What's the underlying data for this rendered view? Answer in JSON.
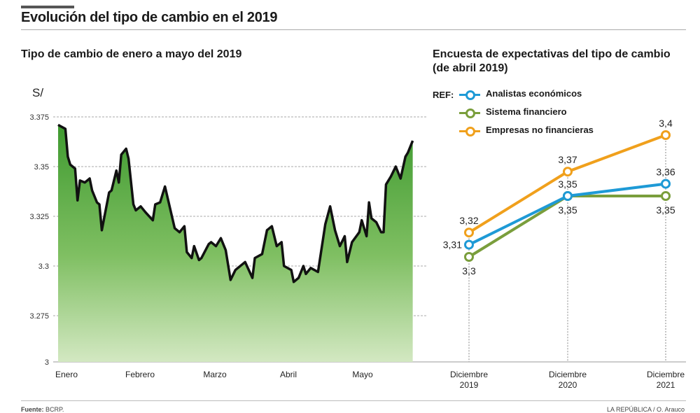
{
  "header": {
    "title": "Evolución del tipo de cambio en el 2019"
  },
  "footer": {
    "source_label": "Fuente:",
    "source": "BCRP.",
    "credit": "LA REPÚBLICA / O. Arauco"
  },
  "chart_data": [
    {
      "type": "area",
      "title": "Tipo de cambio de enero a mayo del 2019",
      "ylabel": "S/",
      "yticks": [
        3.375,
        3.35,
        3.325,
        3.3,
        3.275,
        3
      ],
      "ytick_labels": [
        "3.375",
        "3.35",
        "3.325",
        "3.3",
        "3.275",
        "3"
      ],
      "ylim": [
        3,
        3.375
      ],
      "y_axis_break": true,
      "xtick_labels": [
        "Enero",
        "Febrero",
        "Marzo",
        "Abril",
        "Mayo"
      ],
      "grid": "horizontal dashed",
      "line_color": "#111111",
      "fill_color": "#5aa844",
      "x": [
        "2019-01-01",
        "2019-01-04",
        "2019-01-05",
        "2019-01-06",
        "2019-01-08",
        "2019-01-09",
        "2019-01-10",
        "2019-01-12",
        "2019-01-14",
        "2019-01-15",
        "2019-01-17",
        "2019-01-18",
        "2019-01-19",
        "2019-01-22",
        "2019-01-23",
        "2019-01-25",
        "2019-01-26",
        "2019-01-27",
        "2019-01-29",
        "2019-01-30",
        "2019-02-01",
        "2019-02-02",
        "2019-02-04",
        "2019-02-06",
        "2019-02-09",
        "2019-02-10",
        "2019-02-12",
        "2019-02-14",
        "2019-02-18",
        "2019-02-20",
        "2019-02-22",
        "2019-02-23",
        "2019-02-25",
        "2019-02-26",
        "2019-02-28",
        "2019-03-01",
        "2019-03-04",
        "2019-03-05",
        "2019-03-07",
        "2019-03-09",
        "2019-03-11",
        "2019-03-13",
        "2019-03-15",
        "2019-03-19",
        "2019-03-22",
        "2019-03-23",
        "2019-03-26",
        "2019-03-28",
        "2019-03-30",
        "2019-04-01",
        "2019-04-03",
        "2019-04-04",
        "2019-04-07",
        "2019-04-08",
        "2019-04-10",
        "2019-04-12",
        "2019-04-13",
        "2019-04-15",
        "2019-04-18",
        "2019-04-21",
        "2019-04-23",
        "2019-04-25",
        "2019-04-27",
        "2019-04-29",
        "2019-04-30",
        "2019-05-02",
        "2019-05-05",
        "2019-05-06",
        "2019-05-08",
        "2019-05-09",
        "2019-05-10",
        "2019-05-12",
        "2019-05-14",
        "2019-05-15",
        "2019-05-16",
        "2019-05-18",
        "2019-05-20",
        "2019-05-22",
        "2019-05-24",
        "2019-05-25",
        "2019-05-27"
      ],
      "values": [
        3.371,
        3.369,
        3.355,
        3.351,
        3.349,
        3.333,
        3.343,
        3.342,
        3.344,
        3.338,
        3.332,
        3.331,
        3.318,
        3.337,
        3.338,
        3.348,
        3.342,
        3.356,
        3.359,
        3.354,
        3.331,
        3.328,
        3.33,
        3.327,
        3.323,
        3.331,
        3.332,
        3.34,
        3.319,
        3.317,
        3.32,
        3.307,
        3.304,
        3.31,
        3.303,
        3.304,
        3.311,
        3.312,
        3.31,
        3.314,
        3.308,
        3.293,
        3.298,
        3.302,
        3.294,
        3.304,
        3.306,
        3.318,
        3.32,
        3.31,
        3.312,
        3.3,
        3.298,
        3.292,
        3.294,
        3.3,
        3.296,
        3.299,
        3.297,
        3.321,
        3.33,
        3.318,
        3.31,
        3.315,
        3.302,
        3.312,
        3.317,
        3.323,
        3.315,
        3.332,
        3.324,
        3.322,
        3.317,
        3.317,
        3.341,
        3.345,
        3.35,
        3.344,
        3.355,
        3.357,
        3.363
      ]
    },
    {
      "type": "line",
      "title": "Encuesta de expectativas del tipo de cambio (de abril 2019)",
      "legend_prefix": "REF:",
      "legend_placement": "top-left",
      "categories": [
        [
          "Diciembre",
          "2019"
        ],
        [
          "Diciembre",
          "2020"
        ],
        [
          "Diciembre",
          "2021"
        ]
      ],
      "series": [
        {
          "name": "Analistas económicos",
          "color": "#1e9ad6",
          "values": [
            3.31,
            3.35,
            3.36
          ],
          "labels": [
            "3,31",
            "3,35",
            "3,36"
          ]
        },
        {
          "name": "Sistema financiero",
          "color": "#7a9e3c",
          "values": [
            3.3,
            3.35,
            3.35
          ],
          "labels": [
            "3,3",
            "3,35",
            "3,35"
          ]
        },
        {
          "name": "Empresas no financieras",
          "color": "#f0a01c",
          "values": [
            3.32,
            3.37,
            3.4
          ],
          "labels": [
            "3,32",
            "3,37",
            "3,4"
          ]
        }
      ]
    }
  ]
}
